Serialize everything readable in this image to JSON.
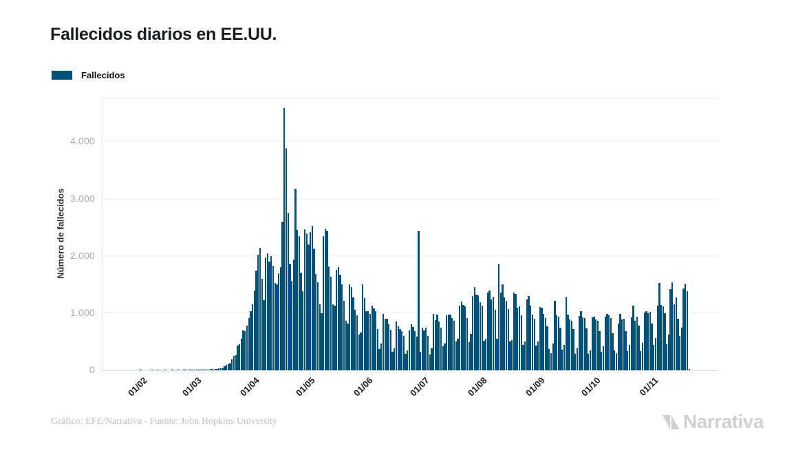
{
  "header": {
    "title": "Fallecidos diarios en EE.UU."
  },
  "legend": {
    "label": "Fallecidos"
  },
  "chart_data": {
    "type": "bar",
    "title": "Fallecidos diarios en EE.UU.",
    "ylabel": "Número de fallecidos",
    "xlabel": "",
    "series_name": "Fallecidos",
    "grid": true,
    "legend_position": "top-left",
    "bar_color": "#00527b",
    "ylim": [
      0,
      4750
    ],
    "y_ticks": [
      {
        "value": 0,
        "label": "0"
      },
      {
        "value": 1000,
        "label": "1.000"
      },
      {
        "value": 2000,
        "label": "2.000"
      },
      {
        "value": 3000,
        "label": "3.000"
      },
      {
        "value": 4000,
        "label": "4.000"
      }
    ],
    "x_domain_days": 330,
    "series_offset_days": 11,
    "x_ticks": [
      {
        "label": "01/02",
        "series_index": 10
      },
      {
        "label": "01/03",
        "series_index": 39
      },
      {
        "label": "01/04",
        "series_index": 70
      },
      {
        "label": "01/05",
        "series_index": 100
      },
      {
        "label": "01/06",
        "series_index": 131
      },
      {
        "label": "01/07",
        "series_index": 161
      },
      {
        "label": "01/08",
        "series_index": 192
      },
      {
        "label": "01/09",
        "series_index": 223
      },
      {
        "label": "01/10",
        "series_index": 253
      },
      {
        "label": "01/11",
        "series_index": 284
      }
    ],
    "values": [
      0,
      0,
      0,
      0,
      0,
      0,
      0,
      0,
      0,
      1,
      0,
      0,
      0,
      0,
      0,
      1,
      0,
      0,
      2,
      0,
      0,
      0,
      1,
      0,
      0,
      0,
      1,
      0,
      0,
      3,
      0,
      0,
      1,
      2,
      0,
      2,
      1,
      3,
      5,
      4,
      2,
      6,
      3,
      6,
      4,
      6,
      5,
      21,
      6,
      27,
      23,
      36,
      38,
      41,
      73,
      97,
      108,
      118,
      195,
      247,
      268,
      434,
      461,
      558,
      699,
      684,
      779,
      912,
      1040,
      1150,
      1400,
      1740,
      2020,
      2140,
      1600,
      1230,
      1970,
      2050,
      1900,
      2000,
      1830,
      1530,
      1500,
      1700,
      1800,
      2600,
      4591,
      3880,
      2750,
      1870,
      1560,
      1940,
      3170,
      2450,
      2350,
      1710,
      1380,
      2470,
      2390,
      2200,
      2420,
      2530,
      2130,
      1680,
      1540,
      1150,
      1000,
      2350,
      2480,
      2440,
      1810,
      1640,
      1160,
      1130,
      1760,
      1800,
      1670,
      1500,
      1220,
      860,
      820,
      1500,
      1450,
      1280,
      1060,
      960,
      620,
      660,
      1500,
      1260,
      1040,
      1040,
      990,
      1130,
      1080,
      1030,
      720,
      370,
      470,
      990,
      900,
      900,
      800,
      710,
      330,
      380,
      850,
      770,
      720,
      690,
      600,
      290,
      350,
      700,
      800,
      760,
      680,
      590,
      2437,
      330,
      750,
      700,
      740,
      600,
      280,
      380,
      990,
      880,
      970,
      850,
      750,
      420,
      470,
      960,
      980,
      970,
      920,
      860,
      510,
      550,
      1130,
      1200,
      1140,
      1120,
      920,
      490,
      640,
      1300,
      1460,
      1320,
      1310,
      1190,
      1130,
      520,
      550,
      1360,
      1400,
      1240,
      1290,
      1060,
      550,
      1860,
      1360,
      1500,
      1270,
      1220,
      1070,
      510,
      530,
      1360,
      1330,
      1090,
      1120,
      960,
      450,
      510,
      1240,
      1300,
      1130,
      980,
      900,
      430,
      500,
      1110,
      1090,
      990,
      920,
      770,
      370,
      300,
      470,
      1210,
      960,
      940,
      750,
      360,
      440,
      1290,
      970,
      890,
      870,
      720,
      290,
      390,
      950,
      1030,
      930,
      910,
      730,
      290,
      350,
      930,
      940,
      890,
      860,
      680,
      330,
      420,
      940,
      990,
      960,
      920,
      650,
      350,
      300,
      820,
      990,
      890,
      900,
      690,
      340,
      440,
      930,
      1130,
      860,
      940,
      780,
      340,
      480,
      1010,
      1030,
      1000,
      1020,
      820,
      440,
      560,
      1130,
      1530,
      1140,
      1120,
      1000,
      460,
      620,
      1420,
      1540,
      1160,
      1270,
      900,
      600,
      740,
      1430,
      1520,
      1380,
      30
    ]
  },
  "footer": {
    "credit": "Gráfico: EFE/Narrativa - Fuente: John Hopkins University",
    "brand": "Narrativa"
  }
}
